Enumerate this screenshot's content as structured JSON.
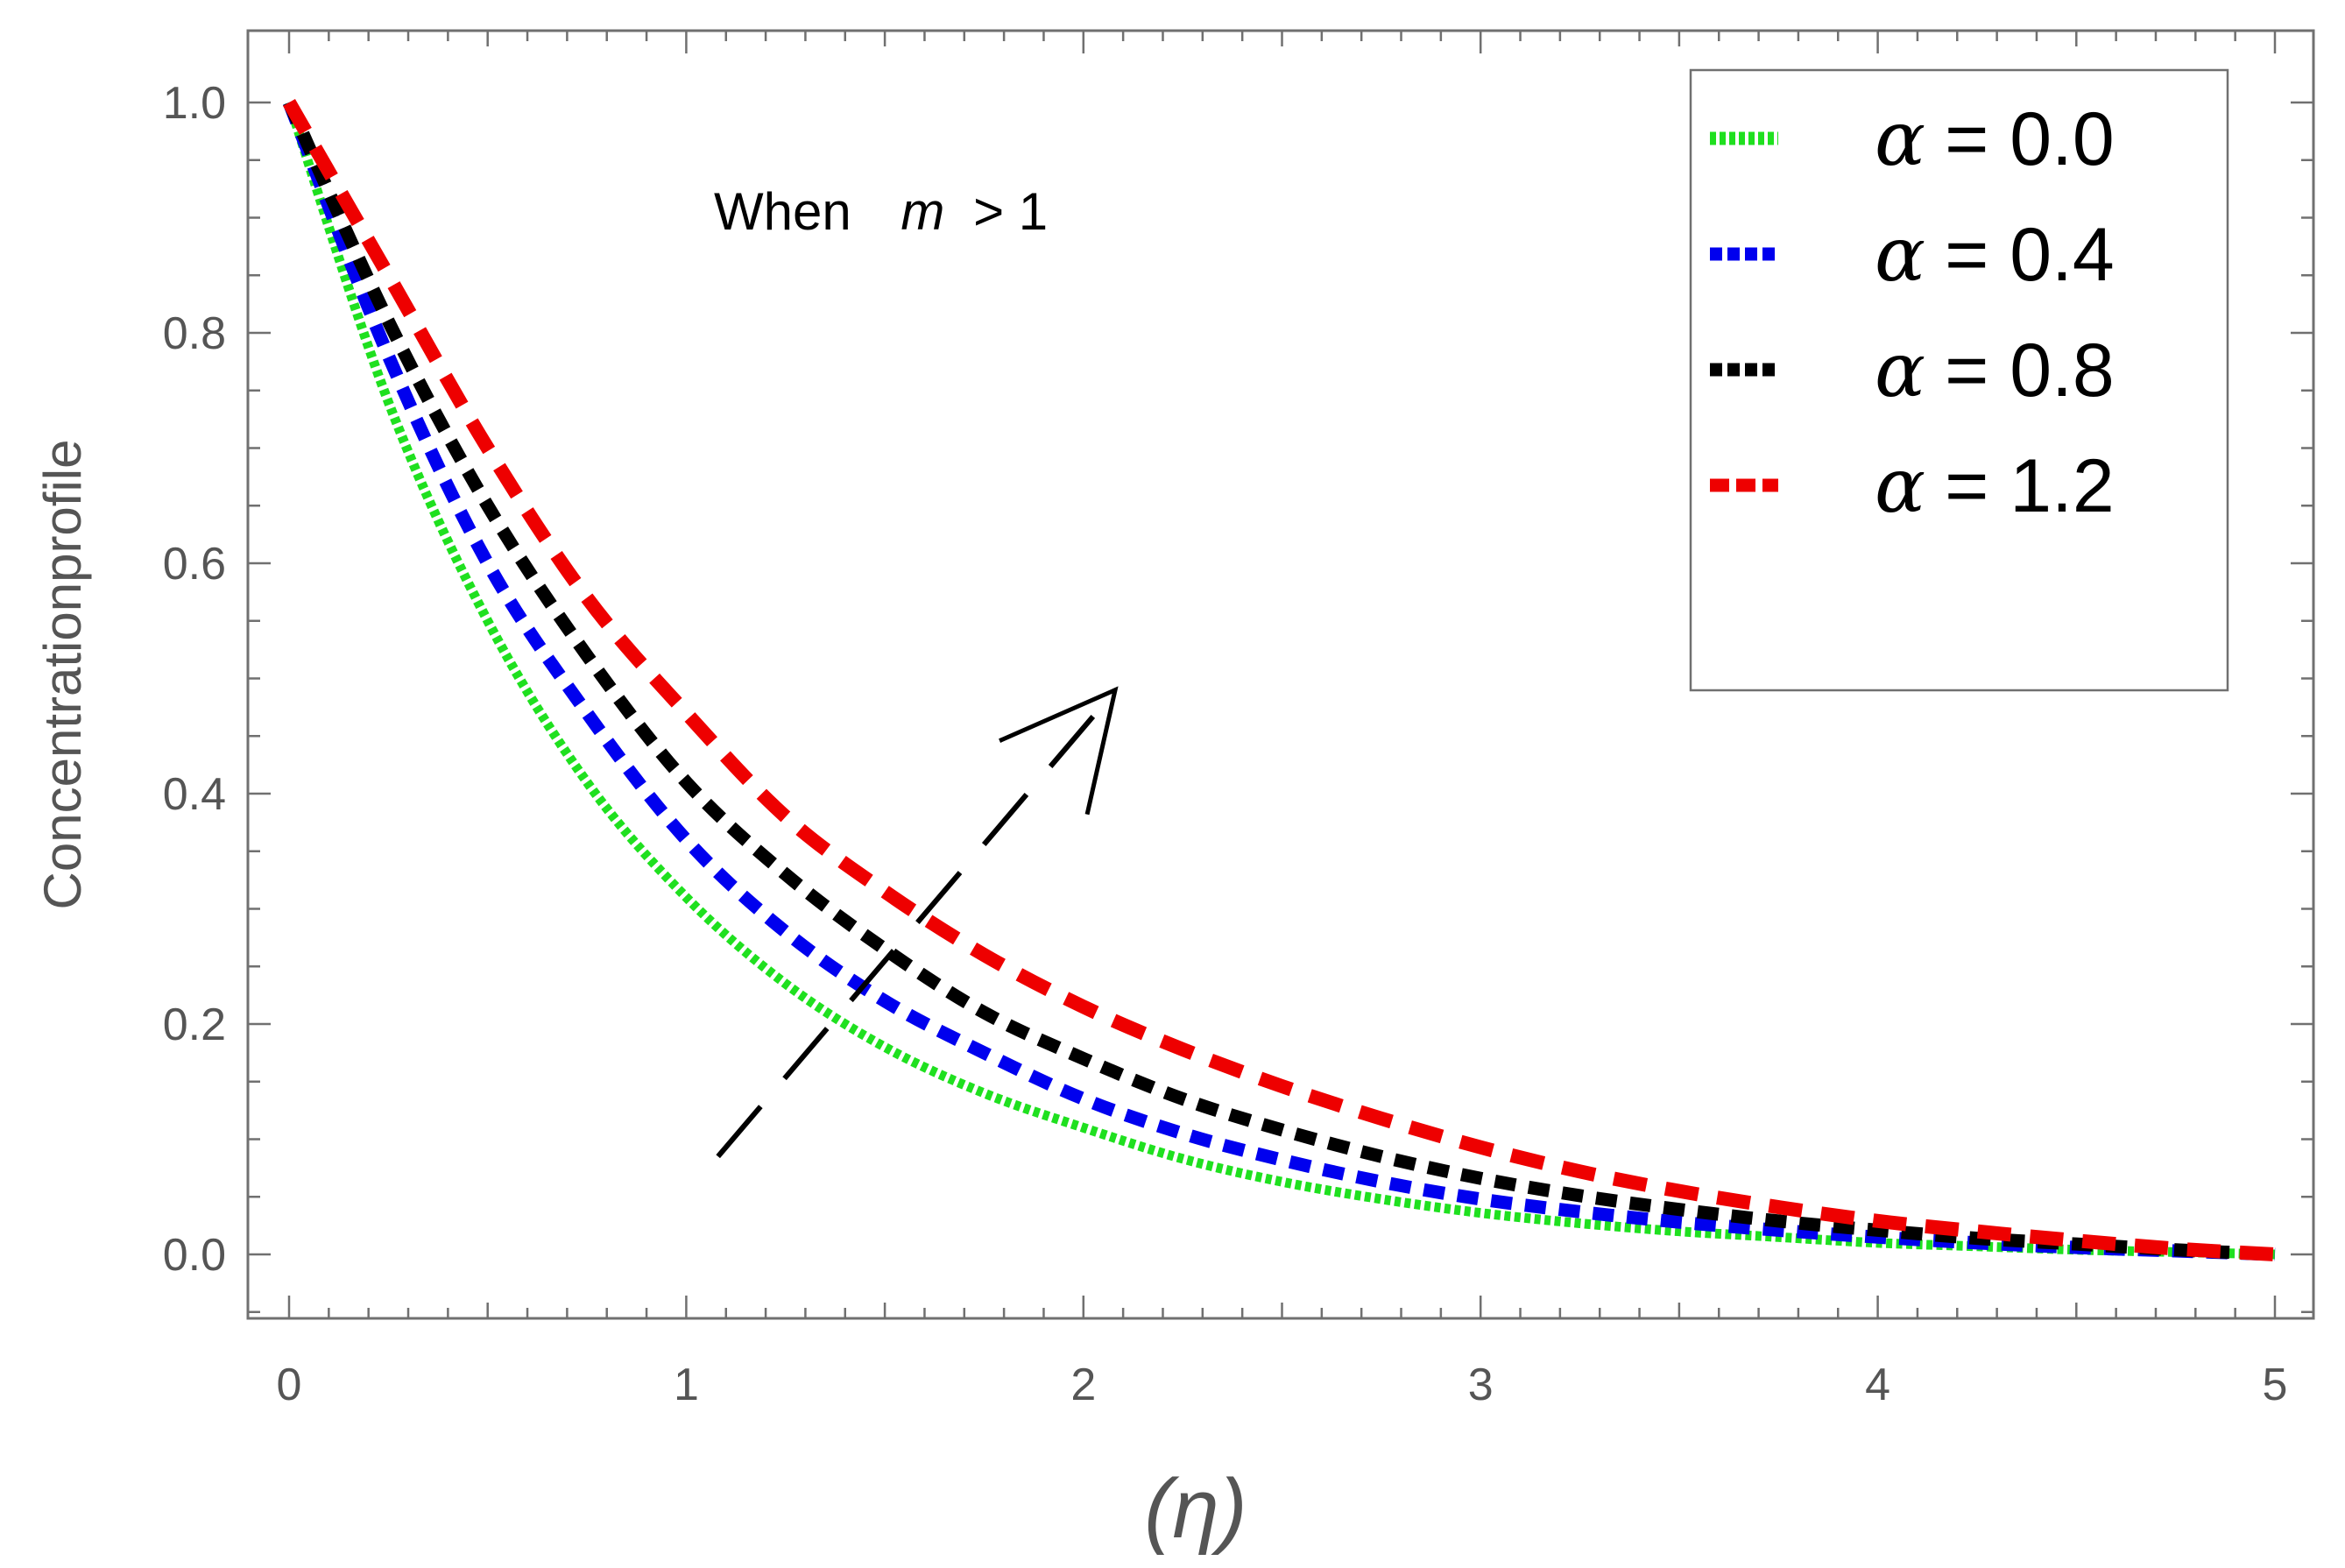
{
  "chart_data": {
    "type": "line",
    "title": "",
    "xlabel": "(η)",
    "ylabel": "Concentrationprofile",
    "xlim": [
      -0.1,
      5.1
    ],
    "ylim": [
      -0.055,
      1.05
    ],
    "xticks": [
      0,
      1,
      2,
      3,
      4,
      5
    ],
    "xtick_labels": [
      "0",
      "1",
      "2",
      "3",
      "4",
      "5"
    ],
    "yticks": [
      0.0,
      0.2,
      0.4,
      0.6,
      0.8,
      1.0
    ],
    "ytick_labels": [
      "0.0",
      "0.2",
      "0.4",
      "0.6",
      "0.8",
      "1.0"
    ],
    "grid": false,
    "legend_position": "top-right",
    "x": [
      0,
      0.25,
      0.5,
      0.75,
      1,
      1.25,
      1.5,
      1.75,
      2,
      2.25,
      2.5,
      2.75,
      3,
      3.25,
      3.5,
      3.75,
      4,
      4.25,
      4.5,
      4.75,
      5
    ],
    "series": [
      {
        "name": "α = 0.0",
        "symbol": "α",
        "value_label": "= 0.0",
        "color": "#1fe01f",
        "style": "dotted",
        "values": [
          1.0,
          0.74,
          0.55,
          0.41,
          0.31,
          0.235,
          0.18,
          0.14,
          0.11,
          0.083,
          0.063,
          0.048,
          0.036,
          0.027,
          0.02,
          0.015,
          0.01,
          0.007,
          0.004,
          0.002,
          0.0
        ]
      },
      {
        "name": "α = 0.4",
        "symbol": "α",
        "value_label": "= 0.4",
        "color": "#0000ee",
        "style": "dashed-short",
        "values": [
          1.0,
          0.78,
          0.6,
          0.47,
          0.36,
          0.28,
          0.22,
          0.175,
          0.135,
          0.105,
          0.082,
          0.063,
          0.048,
          0.037,
          0.028,
          0.021,
          0.015,
          0.01,
          0.006,
          0.003,
          0.0
        ]
      },
      {
        "name": "α = 0.8",
        "symbol": "α",
        "value_label": "= 0.8",
        "color": "#000000",
        "style": "dashed-short",
        "values": [
          1.0,
          0.81,
          0.65,
          0.52,
          0.41,
          0.33,
          0.265,
          0.21,
          0.17,
          0.135,
          0.108,
          0.085,
          0.066,
          0.051,
          0.039,
          0.029,
          0.021,
          0.014,
          0.009,
          0.004,
          0.0
        ]
      },
      {
        "name": "α = 1.2",
        "symbol": "α",
        "value_label": "= 1.2",
        "color": "#ee0000",
        "style": "dashed-long",
        "values": [
          1.0,
          0.85,
          0.7,
          0.57,
          0.47,
          0.38,
          0.315,
          0.26,
          0.215,
          0.178,
          0.146,
          0.118,
          0.093,
          0.072,
          0.055,
          0.041,
          0.029,
          0.02,
          0.012,
          0.005,
          0.0
        ]
      }
    ],
    "annotations": [
      {
        "text_prefix": "When",
        "text_var": "m",
        "text_suffix": "> 1",
        "x": 1.08,
        "y": 0.905
      },
      {
        "type": "arrow",
        "from": [
          1.08,
          0.085
        ],
        "to": [
          2.08,
          0.49
        ],
        "note": "increasing α"
      }
    ]
  }
}
